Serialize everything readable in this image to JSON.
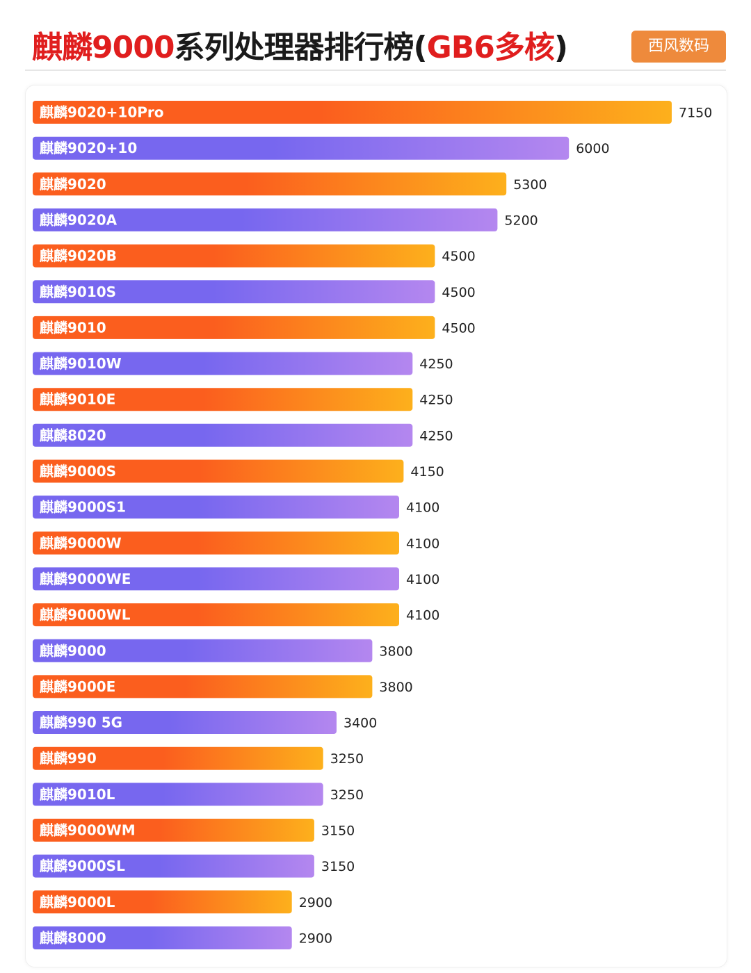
{
  "header": {
    "title_prefix": "麒麟9000",
    "title_middle": "系列处理器排行榜(",
    "title_highlight": "GB6多核",
    "title_suffix": ")",
    "brand": "西风数码"
  },
  "colors": {
    "title_red": "#e01e1e",
    "brand_bg": "#ee8a3c",
    "orange_start": "#fb5e1e",
    "orange_end": "#fdb01c",
    "purple_start": "#7767ef",
    "purple_end": "#b487ef"
  },
  "chart_data": {
    "type": "bar",
    "orientation": "horizontal",
    "title": "麒麟9000系列处理器排行榜(GB6多核)",
    "categories": [
      "麒麟9020+10Pro",
      "麒麟9020+10",
      "麒麟9020",
      "麒麟9020A",
      "麒麟9020B",
      "麒麟9010S",
      "麒麟9010",
      "麒麟9010W",
      "麒麟9010E",
      "麒麟8020",
      "麒麟9000S",
      "麒麟9000S1",
      "麒麟9000W",
      "麒麟9000WE",
      "麒麟9000WL",
      "麒麟9000",
      "麒麟9000E",
      "麒麟990 5G",
      "麒麟990",
      "麒麟9010L",
      "麒麟9000WM",
      "麒麟9000SL",
      "麒麟9000L",
      "麒麟8000"
    ],
    "values": [
      7150,
      6000,
      5300,
      5200,
      4500,
      4500,
      4500,
      4250,
      4250,
      4250,
      4150,
      4100,
      4100,
      4100,
      4100,
      3800,
      3800,
      3400,
      3250,
      3250,
      3150,
      3150,
      2900,
      2900
    ],
    "value_labels": [
      "7150",
      "6000",
      "5300",
      "5200",
      "4500",
      "4500",
      "4500",
      "4250",
      "4250",
      "4250",
      "4150",
      "4100",
      "4100",
      "4100",
      "4100",
      "3800",
      "3800",
      "3400",
      "3250",
      "3250",
      "3150",
      "3150",
      "2900",
      "2900"
    ],
    "xlim": [
      0,
      7150
    ],
    "grid": false,
    "color_pattern": [
      "orange",
      "purple"
    ]
  }
}
